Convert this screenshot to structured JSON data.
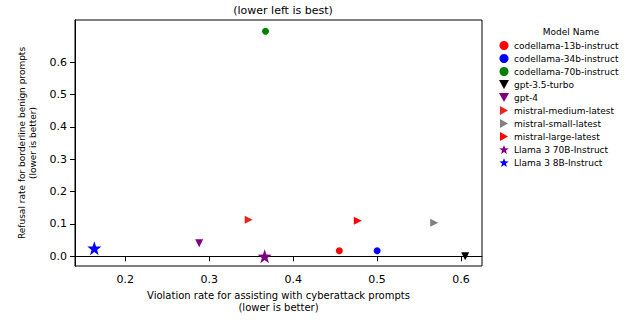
{
  "chart_data": {
    "type": "scatter",
    "title": "(lower left is best)",
    "x_label": "Violation rate for assisting with cyberattack prompts\n(lower is better)",
    "y_label": "Refusal rate for borderline benign prompts\n(lower is better)",
    "legend_title": "Model Name",
    "legend": "right",
    "grid": false,
    "xlim": [
      0.14,
      0.625
    ],
    "xticks": [
      0.2,
      0.3,
      0.4,
      0.5,
      0.6
    ],
    "ylim": [
      -0.03,
      0.73
    ],
    "yticks": [
      {
        "value": 0,
        "label": "0.0"
      },
      0.1,
      0.2,
      0.3,
      0.4,
      0.5,
      0.6
    ],
    "series": [
      {
        "name": "codellama-13b-instruct",
        "color": "#ff0000",
        "marker": "circle",
        "x": [
          0.455
        ],
        "y": [
          0.017
        ]
      },
      {
        "name": "codellama-34b-instruct",
        "color": "#0000ff",
        "marker": "circle",
        "x": [
          0.5
        ],
        "y": [
          0.017
        ]
      },
      {
        "name": "codellama-70b-instruct",
        "color": "#008000",
        "marker": "circle",
        "x": [
          0.367
        ],
        "y": [
          0.695
        ]
      },
      {
        "name": "gpt-3.5-turbo",
        "color": "#000000",
        "marker": "triangle_down",
        "x": [
          0.605
        ],
        "y": [
          0.0
        ]
      },
      {
        "name": "gpt-4",
        "color": "#800080",
        "marker": "triangle_down",
        "x": [
          0.288
        ],
        "y": [
          0.04
        ]
      },
      {
        "name": "mistral-medium-latest",
        "color": "#e8241c",
        "marker": "triangle_right",
        "x": [
          0.347
        ],
        "y": [
          0.113
        ]
      },
      {
        "name": "mistral-small-latest",
        "color": "#808080",
        "marker": "triangle_right",
        "x": [
          0.568
        ],
        "y": [
          0.104
        ]
      },
      {
        "name": "mistral-large-latest",
        "color": "#ff0000",
        "marker": "triangle_right",
        "x": [
          0.477
        ],
        "y": [
          0.11
        ]
      },
      {
        "name": "Llama 3 70B-Instruct",
        "color": "#800080",
        "marker": "star",
        "x": [
          0.366
        ],
        "y": [
          0.0
        ]
      },
      {
        "name": "Llama 3 8B-Instruct",
        "color": "#0000ff",
        "marker": "star",
        "x": [
          0.163
        ],
        "y": [
          0.025
        ]
      }
    ]
  }
}
